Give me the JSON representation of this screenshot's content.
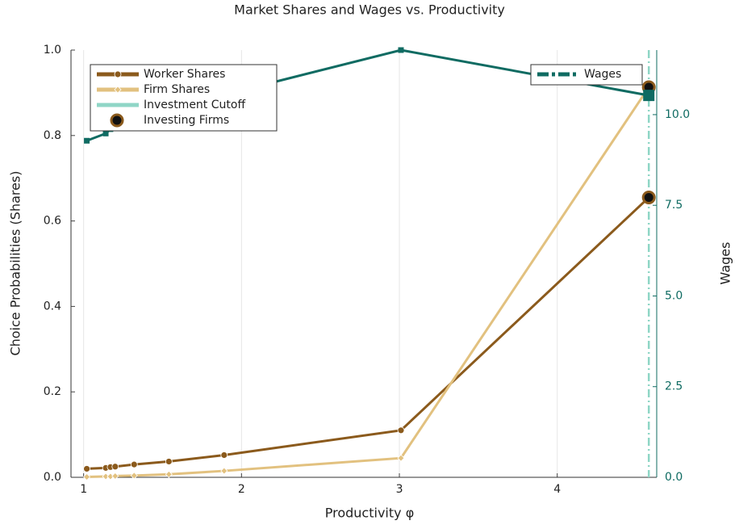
{
  "chart_data": {
    "type": "line",
    "title": "Market Shares and Wages vs. Productivity",
    "xlabel": "Productivity φ",
    "ylabel": "Choice Probabilities (Shares)",
    "y2label": "Wages",
    "xlim": [
      0.92,
      4.63
    ],
    "xticks": [
      1,
      2,
      3,
      4
    ],
    "ylim": [
      0,
      1
    ],
    "yticks": [
      {
        "value": 0,
        "label": "0.0"
      },
      0.2,
      0.4,
      0.6,
      0.8,
      {
        "value": 1,
        "label": "1.0"
      }
    ],
    "y2lim": [
      0,
      11.78
    ],
    "y2ticks": [
      {
        "value": 0,
        "label": "0.0"
      },
      2.5,
      {
        "value": 5,
        "label": "5.0"
      },
      7.5,
      {
        "value": 10,
        "label": "10.0"
      }
    ],
    "grid": "x",
    "legend": "upper left",
    "legend2": "upper right",
    "series": [
      {
        "name": "Worker Shares",
        "color": "#8b5a1c",
        "marker": "circle",
        "x": [
          1.02,
          1.14,
          1.17,
          1.2,
          1.32,
          1.54,
          1.89,
          3.01,
          4.58
        ],
        "values": [
          0.02,
          0.022,
          0.024,
          0.025,
          0.03,
          0.037,
          0.052,
          0.11,
          0.655
        ]
      },
      {
        "name": "Firm Shares",
        "color": "#e2c17f",
        "marker": "diamond",
        "x": [
          1.02,
          1.14,
          1.17,
          1.2,
          1.32,
          1.54,
          1.89,
          3.01,
          4.58
        ],
        "values": [
          0.001,
          0.002,
          0.002,
          0.003,
          0.004,
          0.007,
          0.015,
          0.045,
          0.913
        ]
      },
      {
        "name": "Investment Cutoff",
        "color": "#8fd6c6",
        "marker": "vline",
        "x": [
          4.58
        ]
      },
      {
        "name": "Investing Firms",
        "color": "#8b5a1c",
        "marker": "big-circle",
        "x": [
          4.58,
          4.58
        ],
        "values": [
          0.655,
          0.913
        ]
      },
      {
        "name": "Wages",
        "color": "#0f6b62",
        "marker": "square",
        "axis": "y2",
        "x": [
          1.02,
          1.14,
          1.17,
          1.2,
          1.32,
          1.54,
          1.89,
          3.01,
          4.58
        ],
        "values": [
          9.28,
          9.48,
          9.6,
          9.66,
          9.82,
          10.1,
          10.55,
          11.78,
          10.53
        ]
      }
    ]
  }
}
